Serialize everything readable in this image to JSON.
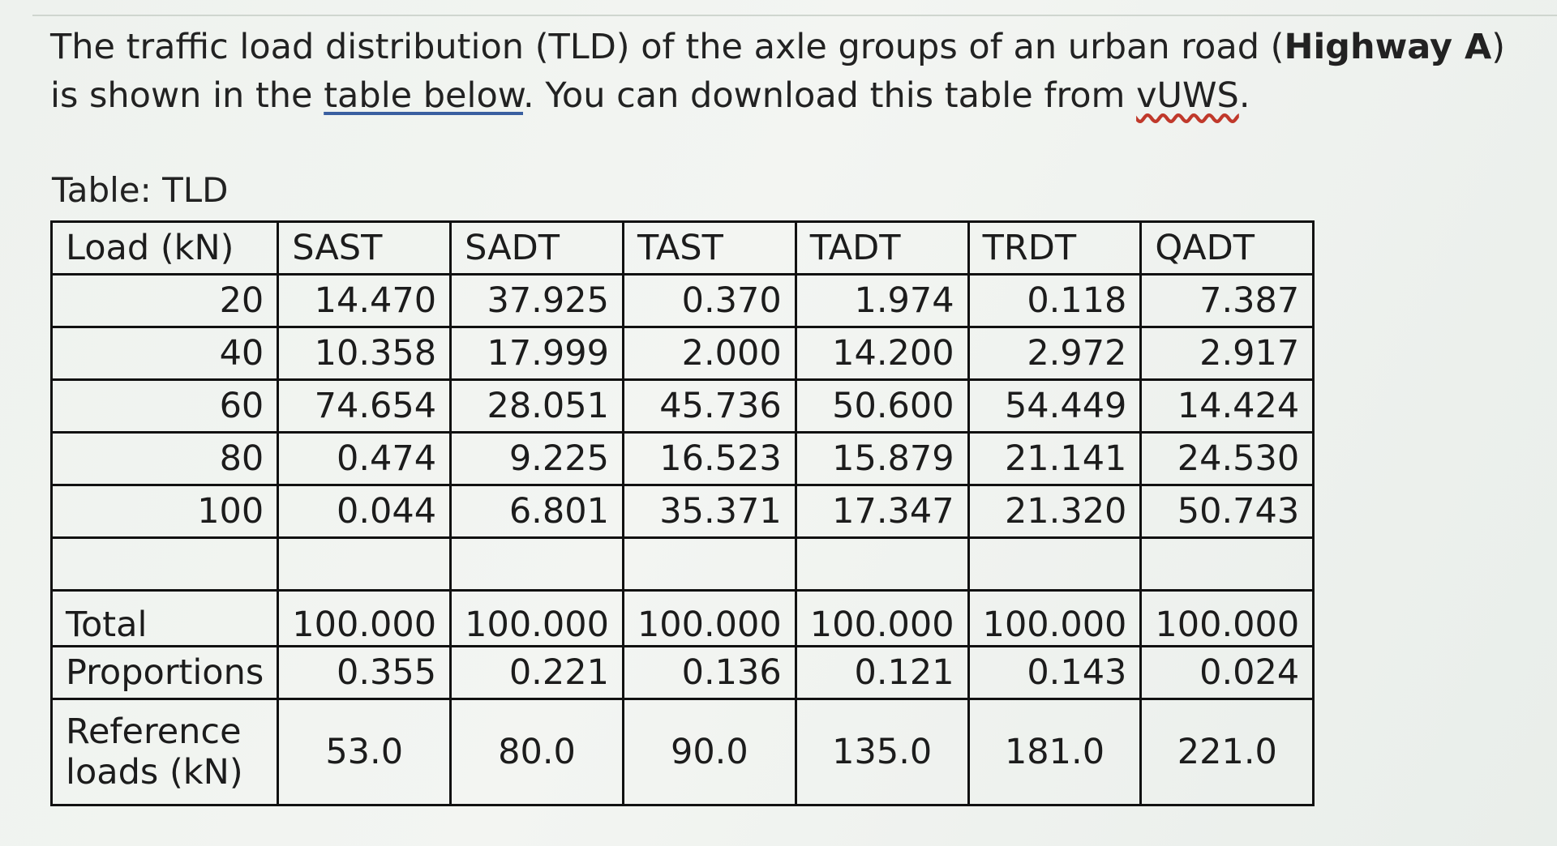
{
  "intro": {
    "part1": "The traffic load distribution (TLD) of the axle groups of an urban road (",
    "bold": "Highway A",
    "part2": ") is shown in the ",
    "link": "table  below",
    "part3": ". You can download this table from ",
    "squiggle": "vUWS",
    "part4": "."
  },
  "caption": "Table: TLD",
  "table": {
    "headers": [
      "Load (kN)",
      "SAST",
      "SADT",
      "TAST",
      "TADT",
      "TRDT",
      "QADT"
    ],
    "rows": [
      {
        "load": "20",
        "values": [
          "14.470",
          "37.925",
          "0.370",
          "1.974",
          "0.118",
          "7.387"
        ]
      },
      {
        "load": "40",
        "values": [
          "10.358",
          "17.999",
          "2.000",
          "14.200",
          "2.972",
          "2.917"
        ]
      },
      {
        "load": "60",
        "values": [
          "74.654",
          "28.051",
          "45.736",
          "50.600",
          "54.449",
          "14.424"
        ]
      },
      {
        "load": "80",
        "values": [
          "0.474",
          "9.225",
          "16.523",
          "15.879",
          "21.141",
          "24.530"
        ]
      },
      {
        "load": "100",
        "values": [
          "0.044",
          "6.801",
          "35.371",
          "17.347",
          "21.320",
          "50.743"
        ]
      }
    ],
    "total": {
      "label": "Total",
      "values": [
        "100.000",
        "100.000",
        "100.000",
        "100.000",
        "100.000",
        "100.000"
      ]
    },
    "proportions": {
      "label": "Proportions",
      "values": [
        "0.355",
        "0.221",
        "0.136",
        "0.121",
        "0.143",
        "0.024"
      ]
    },
    "reference": {
      "label_line1": "Reference",
      "label_line2": "loads (kN)",
      "values": [
        "53.0",
        "80.0",
        "90.0",
        "135.0",
        "181.0",
        "221.0"
      ]
    }
  }
}
